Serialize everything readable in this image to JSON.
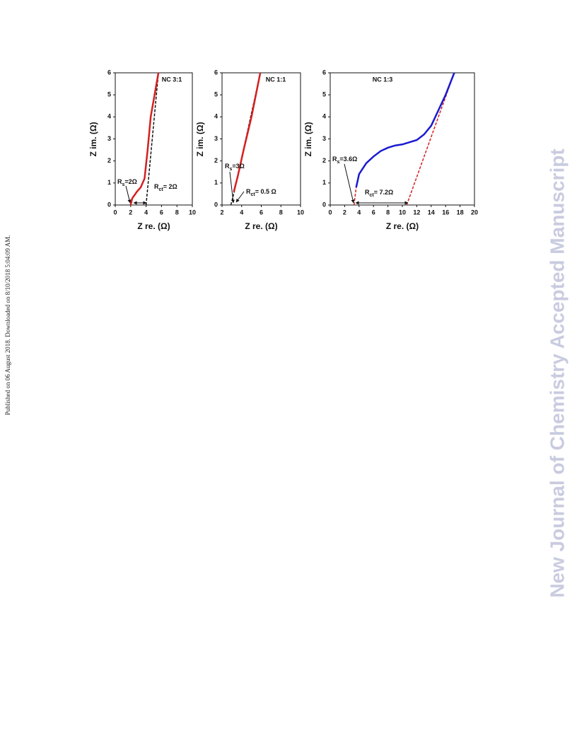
{
  "side_note": "Published on 06 August 2018. Downloaded on 8/10/2018 5:04:09 AM.",
  "watermark": "New Journal of Chemistry Accepted Manuscript",
  "chart_data": [
    {
      "type": "line",
      "title": "NC 3:1",
      "x_label": "Z re. (Ω)",
      "y_label": "Z im. (Ω)",
      "xlim": [
        0,
        10
      ],
      "xticks": [
        0,
        2,
        4,
        6,
        8,
        10
      ],
      "ylim": [
        0,
        6
      ],
      "yticks": [
        0,
        1,
        2,
        3,
        4,
        5,
        6
      ],
      "series": [
        {
          "color": "#111111",
          "dash": true,
          "x": [
            4,
            5.6
          ],
          "values": [
            0,
            6
          ]
        },
        {
          "color": "#d42020",
          "dash": false,
          "x": [
            2,
            2.2,
            2.8,
            3.3,
            3.8,
            4.2,
            4.6,
            5.1,
            5.6
          ],
          "values": [
            0,
            0.3,
            0.6,
            0.8,
            1.2,
            2.5,
            4,
            5,
            6
          ]
        }
      ],
      "annotations": [
        {
          "main": "R",
          "sub": "s",
          "rest": "=2Ω"
        },
        {
          "main": "R",
          "sub": "ct",
          "rest": "= 2Ω"
        }
      ]
    },
    {
      "type": "line",
      "title": "NC 1:1",
      "x_label": "Z re. (Ω)",
      "y_label": "Z im. (Ω)",
      "xlim": [
        2,
        10
      ],
      "xticks": [
        2,
        4,
        6,
        8,
        10
      ],
      "ylim": [
        0,
        6
      ],
      "yticks": [
        0,
        1,
        2,
        3,
        4,
        5,
        6
      ],
      "series": [
        {
          "color": "#111111",
          "dash": true,
          "x": [
            2.9,
            3.3,
            5.9
          ],
          "values": [
            0,
            0.7,
            6
          ]
        },
        {
          "color": "#d42020",
          "dash": false,
          "x": [
            3.2,
            3.6,
            4.2,
            5,
            5.9
          ],
          "values": [
            0.6,
            1.3,
            2.5,
            4,
            6
          ]
        }
      ],
      "annotations": [
        {
          "main": "R",
          "sub": "s",
          "rest": "=3Ω"
        },
        {
          "main": "R",
          "sub": "ct",
          "rest": "= 0.5 Ω"
        }
      ]
    },
    {
      "type": "line",
      "title": "NC 1:3",
      "x_label": "Z re. (Ω)",
      "y_label": "Z im. (Ω)",
      "xlim": [
        0,
        20
      ],
      "xticks": [
        0,
        2,
        4,
        6,
        8,
        10,
        12,
        14,
        16,
        18,
        20
      ],
      "ylim": [
        0,
        6
      ],
      "yticks": [
        0,
        1,
        2,
        3,
        4,
        5,
        6
      ],
      "series": [
        {
          "color": "#d42020",
          "dash": true,
          "x": [
            3.3,
            3.6
          ],
          "values": [
            0,
            0.8
          ]
        },
        {
          "color": "#d42020",
          "dash": true,
          "x": [
            10.6,
            17.2
          ],
          "values": [
            0,
            6
          ]
        },
        {
          "color": "#1a1ad0",
          "dash": false,
          "x": [
            3.6,
            4,
            5,
            6,
            7,
            8,
            9,
            10,
            11,
            12,
            13,
            14,
            15,
            16,
            17.2
          ],
          "values": [
            0.8,
            1.4,
            1.9,
            2.2,
            2.45,
            2.6,
            2.7,
            2.75,
            2.85,
            2.95,
            3.2,
            3.6,
            4.3,
            5,
            6
          ]
        }
      ],
      "annotations": [
        {
          "main": "R",
          "sub": "s",
          "rest": "=3.6Ω"
        },
        {
          "main": "R",
          "sub": "ct",
          "rest": "= 7.2Ω"
        }
      ]
    }
  ]
}
